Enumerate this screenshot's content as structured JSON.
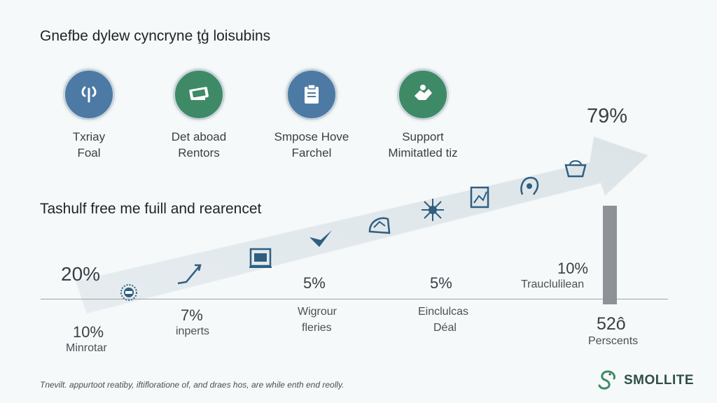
{
  "title": "Gnefbe dylew cyncryne ţģ loisubins",
  "subtitle": "Tashulf free me fuill and rearencet",
  "circles": [
    {
      "label1": "Txriay",
      "label2": "Foal",
      "icon": "tool-icon",
      "color": "#4d7aa4"
    },
    {
      "label1": "Det aboad",
      "label2": "Rentors",
      "icon": "money-icon",
      "color": "#3f8a66"
    },
    {
      "label1": "Smpose Hove",
      "label2": "Farchel",
      "icon": "clipboard-icon",
      "color": "#4d7aa4"
    },
    {
      "label1": "Support",
      "label2": "Mimitatled tiz",
      "icon": "handshake-icon",
      "color": "#3f8a66"
    }
  ],
  "values": {
    "top_right": "79%",
    "left": "20%",
    "bottom_left": "10%",
    "bottom_left_label": "Minrotar",
    "mid1": "7%",
    "mid1_label": "inperts",
    "mid2": "5%",
    "mid2_label1": "Wigrour",
    "mid2_label2": "fleries",
    "mid3": "5%",
    "mid3_label1": "Einclulcas",
    "mid3_label2": "Déal",
    "right": "10%",
    "right_label": "Trauclulilean",
    "far_right": "52ô",
    "far_right_label": "Perscents"
  },
  "arrow_icons": [
    "sun-badge-icon",
    "rising-arrow-icon",
    "document-icon",
    "checkmark-icon",
    "globe-icon",
    "burst-icon",
    "chart-card-icon",
    "head-icon",
    "cloud-cup-icon"
  ],
  "footnote": "Tnevilt. appurtoot reatiby, iftifloratione of, and draes hos, are while enth end reolly.",
  "logo_text": "SMOLLITE"
}
